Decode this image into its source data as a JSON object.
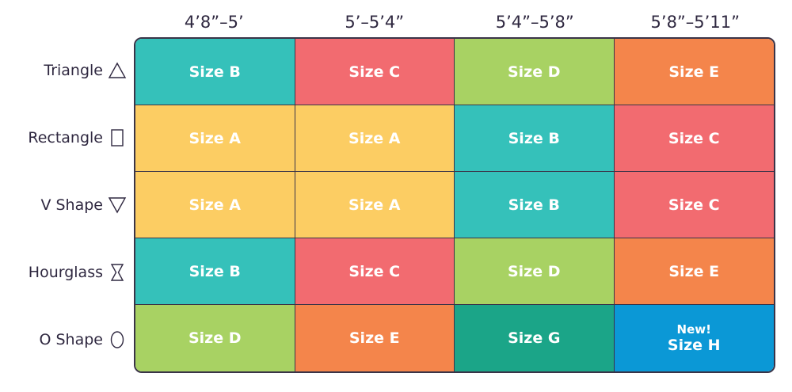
{
  "chart_data": {
    "type": "table",
    "title": "",
    "columns": [
      "4’8”–5’",
      "5’–5’4”",
      "5’4”–5’8”",
      "5’8”–5’11”"
    ],
    "rows": [
      {
        "label": "Triangle",
        "icon": "triangle-icon",
        "cells": [
          {
            "text": "Size B",
            "color": "#35c1ba"
          },
          {
            "text": "Size C",
            "color": "#f26b70"
          },
          {
            "text": "Size D",
            "color": "#a8d263"
          },
          {
            "text": "Size E",
            "color": "#f4854b"
          }
        ]
      },
      {
        "label": "Rectangle",
        "icon": "rectangle-icon",
        "cells": [
          {
            "text": "Size A",
            "color": "#fccd63"
          },
          {
            "text": "Size A",
            "color": "#fccd63"
          },
          {
            "text": "Size B",
            "color": "#35c1ba"
          },
          {
            "text": "Size C",
            "color": "#f26b70"
          }
        ]
      },
      {
        "label": "V Shape",
        "icon": "inverted-triangle-icon",
        "cells": [
          {
            "text": "Size A",
            "color": "#fccd63"
          },
          {
            "text": "Size A",
            "color": "#fccd63"
          },
          {
            "text": "Size B",
            "color": "#35c1ba"
          },
          {
            "text": "Size C",
            "color": "#f26b70"
          }
        ]
      },
      {
        "label": "Hourglass",
        "icon": "hourglass-icon",
        "cells": [
          {
            "text": "Size B",
            "color": "#35c1ba"
          },
          {
            "text": "Size C",
            "color": "#f26b70"
          },
          {
            "text": "Size D",
            "color": "#a8d263"
          },
          {
            "text": "Size E",
            "color": "#f4854b"
          }
        ]
      },
      {
        "label": "O Shape",
        "icon": "oval-icon",
        "cells": [
          {
            "text": "Size D",
            "color": "#a8d263"
          },
          {
            "text": "Size E",
            "color": "#f4854b"
          },
          {
            "text": "Size G",
            "color": "#1ba588"
          },
          {
            "text": "Size H",
            "note": "New!",
            "color": "#0b98d6"
          }
        ]
      }
    ]
  }
}
